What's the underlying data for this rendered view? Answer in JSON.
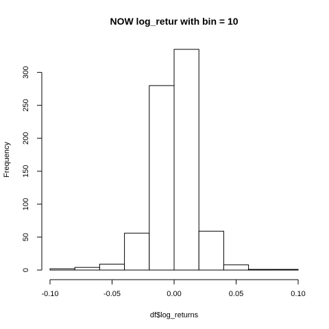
{
  "chart_data": {
    "type": "bar",
    "title": "NOW log_retur with bin = 10",
    "xlabel": "df$log_returns",
    "ylabel": "Frequency",
    "xlim": [
      -0.1,
      0.1
    ],
    "ylim": [
      0,
      335
    ],
    "x_ticks": [
      -0.1,
      -0.05,
      0.0,
      0.05,
      0.1
    ],
    "x_tick_labels": [
      "-0.10",
      "-0.05",
      "0.00",
      "0.05",
      "0.10"
    ],
    "y_ticks": [
      0,
      50,
      100,
      150,
      200,
      250,
      300
    ],
    "y_tick_labels": [
      "0",
      "50",
      "100",
      "150",
      "200",
      "250",
      "300"
    ],
    "bins": [
      {
        "from": -0.1,
        "to": -0.08,
        "count": 2
      },
      {
        "from": -0.08,
        "to": -0.06,
        "count": 4
      },
      {
        "from": -0.06,
        "to": -0.04,
        "count": 9
      },
      {
        "from": -0.04,
        "to": -0.02,
        "count": 56
      },
      {
        "from": -0.02,
        "to": 0.0,
        "count": 280
      },
      {
        "from": 0.0,
        "to": 0.02,
        "count": 335
      },
      {
        "from": 0.02,
        "to": 0.04,
        "count": 59
      },
      {
        "from": 0.04,
        "to": 0.06,
        "count": 8
      },
      {
        "from": 0.06,
        "to": 0.08,
        "count": 1
      },
      {
        "from": 0.08,
        "to": 0.1,
        "count": 1
      }
    ],
    "grid": false,
    "legend": "none",
    "bar_fill": "#ffffff",
    "bar_stroke": "#000000"
  }
}
